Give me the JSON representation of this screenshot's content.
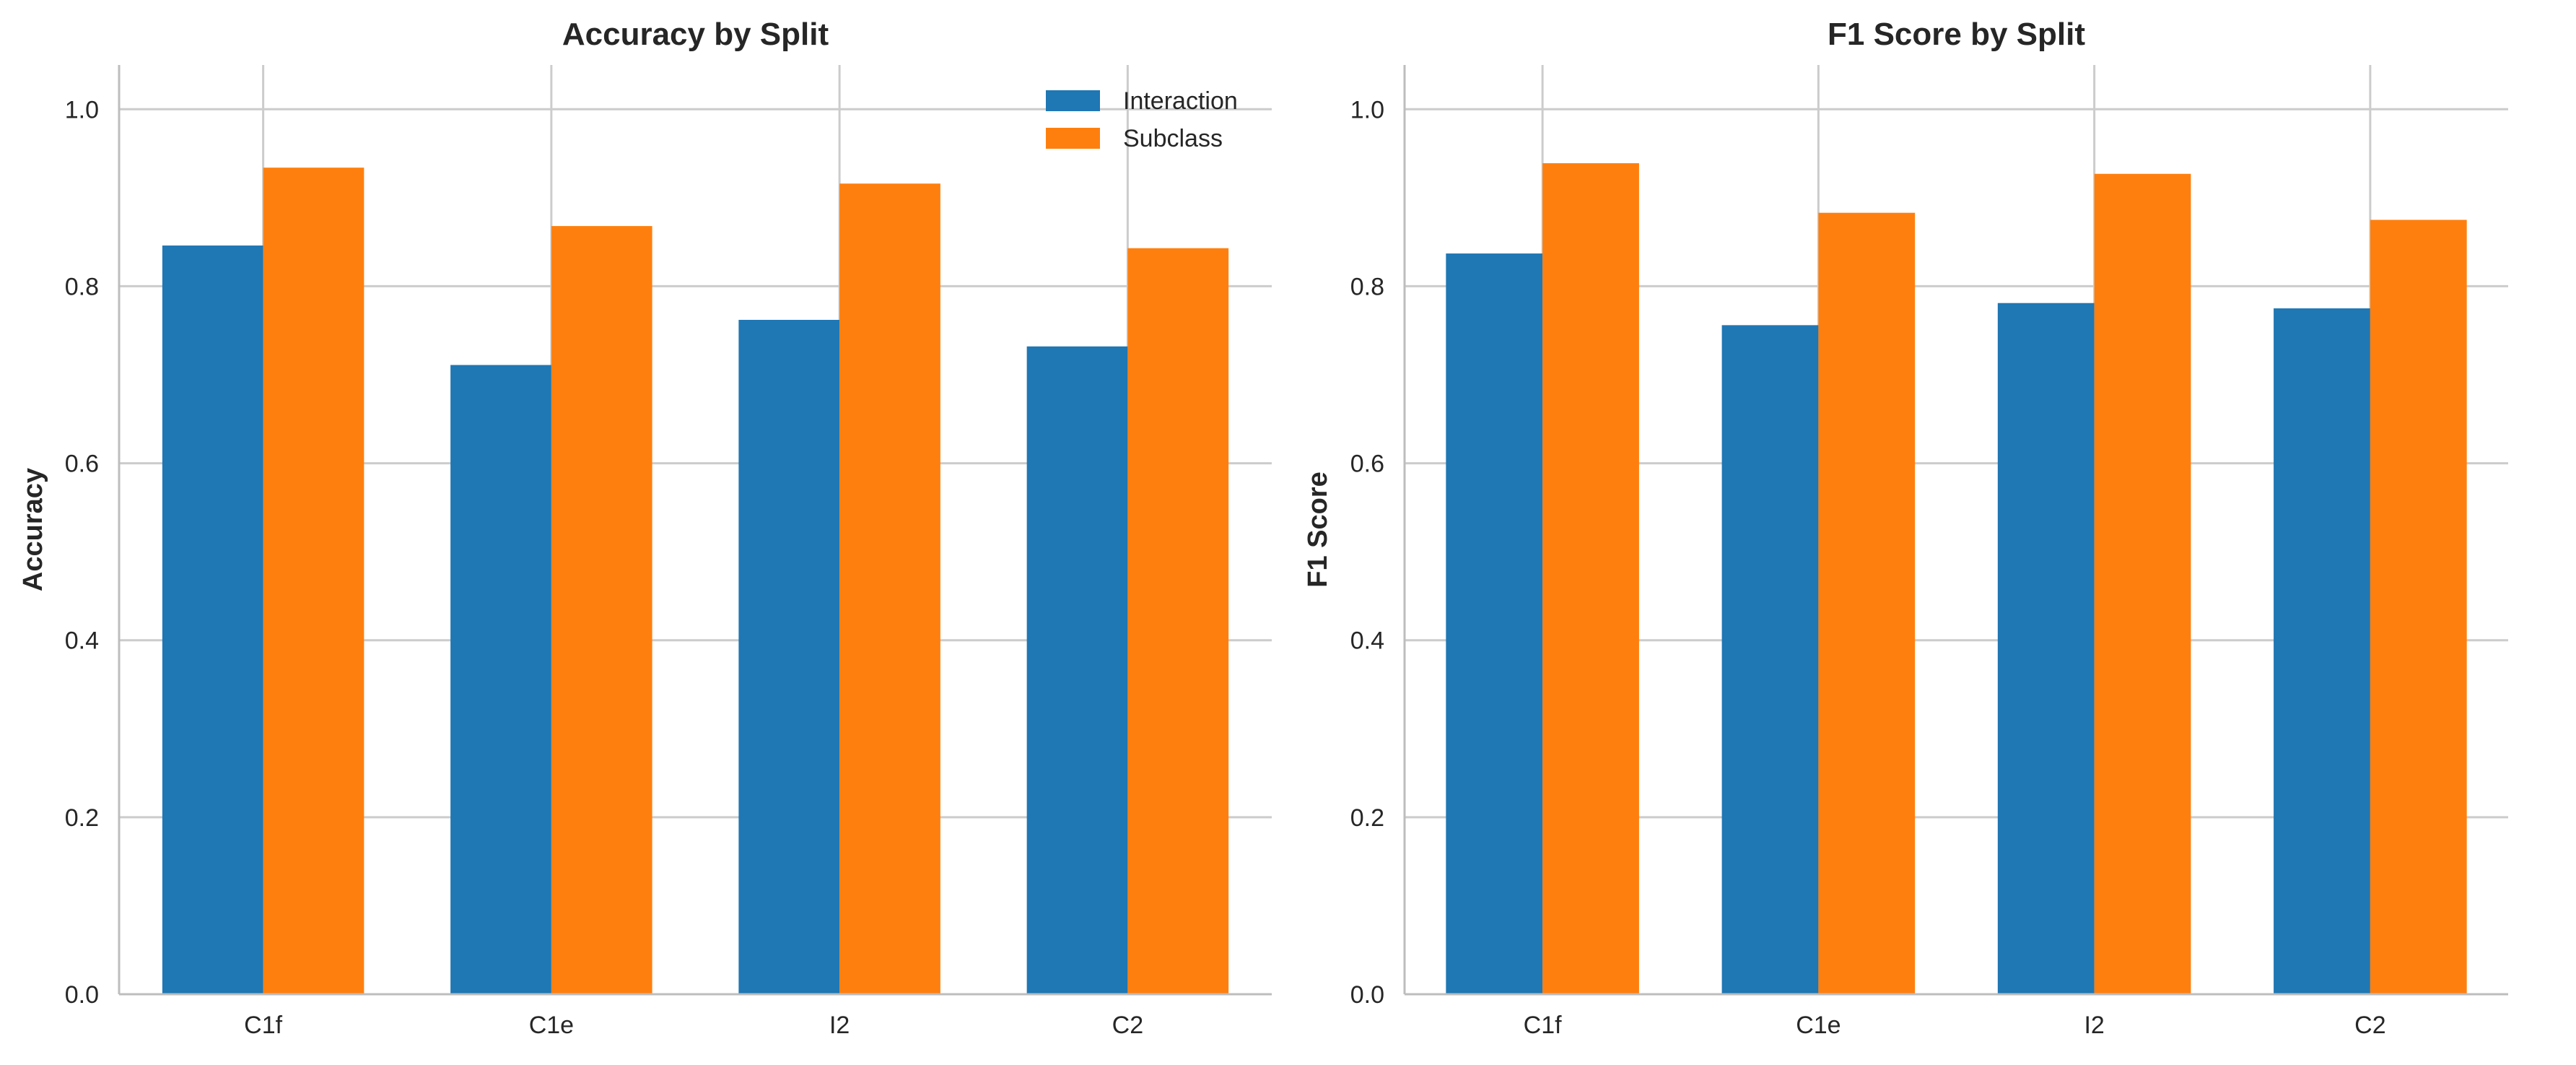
{
  "figure": {
    "colors": {
      "Interaction": "#1f77b4",
      "Subclass": "#ff7f0e",
      "grid": "#cccccc",
      "axis": "#bdbdbd"
    }
  },
  "chart_data": [
    {
      "type": "bar",
      "title": "Accuracy by Split",
      "xlabel": "",
      "ylabel": "Accuracy",
      "categories": [
        "C1f",
        "C1e",
        "I2",
        "C2"
      ],
      "series": [
        {
          "name": "Interaction",
          "values": [
            0.846,
            0.711,
            0.762,
            0.732
          ]
        },
        {
          "name": "Subclass",
          "values": [
            0.934,
            0.868,
            0.916,
            0.843
          ]
        }
      ],
      "ylim": [
        0,
        1.05
      ],
      "yticks": [
        "0.0",
        "0.2",
        "0.4",
        "0.6",
        "0.8",
        "1.0"
      ],
      "grid": true,
      "legend": {
        "position": "top-right",
        "entries": [
          "Interaction",
          "Subclass"
        ]
      }
    },
    {
      "type": "bar",
      "title": "F1 Score by Split",
      "xlabel": "",
      "ylabel": "F1 Score",
      "categories": [
        "C1f",
        "C1e",
        "I2",
        "C2"
      ],
      "series": [
        {
          "name": "Interaction",
          "values": [
            0.837,
            0.756,
            0.781,
            0.775
          ]
        },
        {
          "name": "Subclass",
          "values": [
            0.939,
            0.883,
            0.927,
            0.875
          ]
        }
      ],
      "ylim": [
        0,
        1.05
      ],
      "yticks": [
        "0.0",
        "0.2",
        "0.4",
        "0.6",
        "0.8",
        "1.0"
      ],
      "grid": true,
      "legend": null
    }
  ]
}
